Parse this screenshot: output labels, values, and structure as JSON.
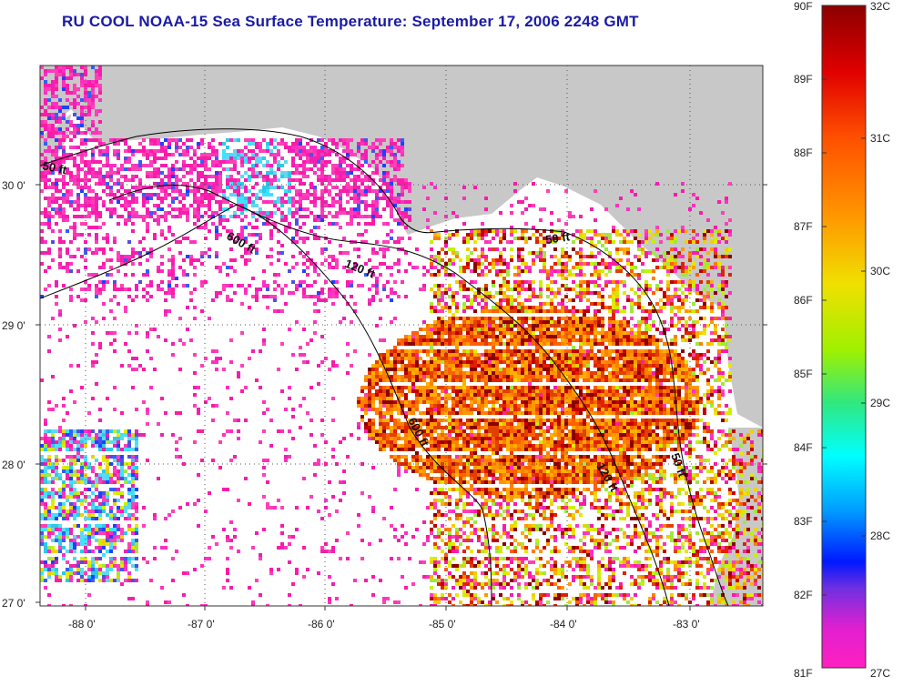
{
  "title": "RU COOL  NOAA-15  Sea Surface Temperature:  September 17, 2006 2248 GMT",
  "latitude_labels": [
    "30 0'",
    "29 0'",
    "28 0'",
    "27 0'"
  ],
  "longitude_labels": [
    "-88 0'",
    "-87 0'",
    "-86 0'",
    "-85 0'",
    "-84 0'",
    "-83 0'"
  ],
  "contour_labels": [
    "50 ft",
    "600 ft",
    "120 ft",
    "50 ft",
    "600 ft",
    "120 ft",
    "50 ft"
  ],
  "colorbar": {
    "fahrenheit": [
      "90F",
      "89F",
      "88F",
      "87F",
      "86F",
      "85F",
      "84F",
      "83F",
      "82F",
      "81F"
    ],
    "celsius": [
      "32C",
      "31C",
      "30C",
      "29C",
      "28C",
      "27C"
    ]
  },
  "colors": {
    "title": "#1a1aa6",
    "land": "#c8c8c8",
    "water_nodata": "#ffffff",
    "cold": "#ff1aa8",
    "warm": "#ff8c00"
  }
}
